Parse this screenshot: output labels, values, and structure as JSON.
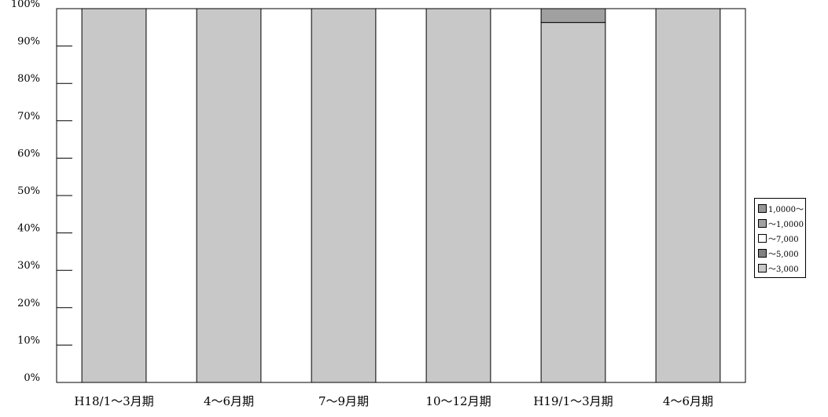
{
  "chart_data": {
    "type": "bar",
    "stacked": true,
    "categories": [
      "H18/1～3月期",
      "4～6月期",
      "7～9月期",
      "10～12月期",
      "H19/1～3月期",
      "4～6月期"
    ],
    "series": [
      {
        "name": "～3,000",
        "color": "#c8c8c8",
        "values": [
          100,
          100,
          100,
          100,
          96.3,
          100
        ]
      },
      {
        "name": "～5,000",
        "color": "#808080",
        "values": [
          0,
          0,
          0,
          0,
          0,
          0
        ]
      },
      {
        "name": "～7,000",
        "color": "#ffffff",
        "values": [
          0,
          0,
          0,
          0,
          0,
          0
        ]
      },
      {
        "name": "～1,0000",
        "color": "#a0a0a0",
        "values": [
          0,
          0,
          0,
          0,
          3.7,
          0
        ]
      },
      {
        "name": "1,0000～",
        "color": "#969696",
        "values": [
          0,
          0,
          0,
          0,
          0,
          0
        ]
      }
    ],
    "y_ticks": [
      "0%",
      "10%",
      "20%",
      "30%",
      "40%",
      "50%",
      "60%",
      "70%",
      "80%",
      "90%",
      "100%"
    ],
    "ylim": [
      0,
      100
    ],
    "grid": false,
    "legend_position": "right",
    "legend_order": [
      "1,0000～",
      "～1,0000",
      "～7,000",
      "～5,000",
      "～3,000"
    ]
  }
}
